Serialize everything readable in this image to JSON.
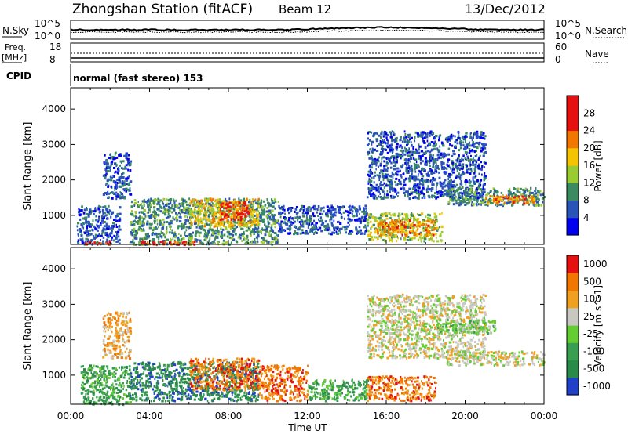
{
  "header": {
    "station": "Zhongshan Station (fitACF)",
    "beam": "Beam 12",
    "date": "13/Dec/2012"
  },
  "panels": {
    "nsky": {
      "label": "N.Sky",
      "ticks": [
        "10^5",
        "10^0"
      ],
      "right_label": "N.Search",
      "right_ticks": [
        "10^5",
        "10^0"
      ]
    },
    "freq": {
      "label_line1": "Freq.",
      "label_line2": "[MHz]",
      "ticks": [
        "18",
        "8"
      ],
      "right_label": "Nave",
      "right_ticks": [
        "60",
        "0"
      ]
    },
    "cpid": {
      "label": "CPID",
      "mode": "normal (fast stereo) 153"
    }
  },
  "chart_data": [
    {
      "type": "heatmap",
      "title": "",
      "xlabel": "Time UT",
      "ylabel": "Slant Range [km]",
      "x_ticks": [
        "00:00",
        "04:00",
        "08:00",
        "12:00",
        "16:00",
        "20:00",
        "00:00"
      ],
      "xlim": [
        0,
        24
      ],
      "y_ticks": [
        "1000",
        "2000",
        "3000",
        "4000"
      ],
      "ylim": [
        180,
        4600
      ],
      "colorbar": {
        "label": "Power [dB]",
        "levels": [
          "4",
          "8",
          "12",
          "16",
          "20",
          "24",
          "28"
        ],
        "colors": [
          "#0000ee",
          "#2a55b8",
          "#3b8a60",
          "#99cc33",
          "#f5c400",
          "#f07800",
          "#e61010",
          "#e61010"
        ]
      },
      "regions": [
        {
          "t": [
            0.3,
            2.5
          ],
          "r": [
            200,
            1300
          ],
          "level": 1
        },
        {
          "t": [
            0.5,
            2.0
          ],
          "r": [
            200,
            300
          ],
          "level": 6
        },
        {
          "t": [
            1.6,
            3.0
          ],
          "r": [
            1500,
            2800
          ],
          "level": 1
        },
        {
          "t": [
            3.0,
            10.5
          ],
          "r": [
            200,
            1500
          ],
          "level": 2
        },
        {
          "t": [
            6.0,
            9.5
          ],
          "r": [
            700,
            1500
          ],
          "level": 4
        },
        {
          "t": [
            7.5,
            9.0
          ],
          "r": [
            900,
            1400
          ],
          "level": 6
        },
        {
          "t": [
            3.5,
            6.5
          ],
          "r": [
            200,
            300
          ],
          "level": 6
        },
        {
          "t": [
            10.5,
            15.0
          ],
          "r": [
            500,
            1300
          ],
          "level": 1
        },
        {
          "t": [
            15.0,
            18.8
          ],
          "r": [
            300,
            1100
          ],
          "level": 3
        },
        {
          "t": [
            15.5,
            18.5
          ],
          "r": [
            450,
            900
          ],
          "level": 5
        },
        {
          "t": [
            15.0,
            21.0
          ],
          "r": [
            1500,
            3400
          ],
          "level": 1
        },
        {
          "t": [
            19.0,
            24.0
          ],
          "r": [
            1300,
            1800
          ],
          "level": 2
        },
        {
          "t": [
            21.0,
            23.5
          ],
          "r": [
            1350,
            1600
          ],
          "level": 5
        }
      ]
    },
    {
      "type": "heatmap",
      "title": "",
      "xlabel": "Time UT",
      "ylabel": "Slant Range [km]",
      "x_ticks": [
        "00:00",
        "04:00",
        "08:00",
        "12:00",
        "16:00",
        "20:00",
        "00:00"
      ],
      "xlim": [
        0,
        24
      ],
      "y_ticks": [
        "1000",
        "2000",
        "3000",
        "4000"
      ],
      "ylim": [
        180,
        4600
      ],
      "colorbar": {
        "label": "Velocity [m s^-1]",
        "levels": [
          "1000",
          "500",
          "100",
          "25",
          "-25",
          "-100",
          "-500",
          "-1000"
        ],
        "colors": [
          "#2040c8",
          "#2a8a4a",
          "#3a9e50",
          "#66cc33",
          "#c8c8c0",
          "#f0a020",
          "#f07800",
          "#e61010"
        ]
      },
      "regions": [
        {
          "t": [
            0.5,
            3.0
          ],
          "r": [
            200,
            1300
          ],
          "level": 2
        },
        {
          "t": [
            1.6,
            3.0
          ],
          "r": [
            1500,
            2800
          ],
          "level": 5
        },
        {
          "t": [
            3.0,
            9.5
          ],
          "r": [
            300,
            1400
          ],
          "level": 1
        },
        {
          "t": [
            6.0,
            9.5
          ],
          "r": [
            600,
            1500
          ],
          "level": 6
        },
        {
          "t": [
            9.5,
            12.0
          ],
          "r": [
            300,
            1300
          ],
          "level": 6
        },
        {
          "t": [
            12.0,
            15.0
          ],
          "r": [
            300,
            900
          ],
          "level": 2
        },
        {
          "t": [
            15.0,
            18.5
          ],
          "r": [
            300,
            1000
          ],
          "level": 6
        },
        {
          "t": [
            15.0,
            21.0
          ],
          "r": [
            1500,
            3300
          ],
          "level": 4
        },
        {
          "t": [
            19.0,
            24.0
          ],
          "r": [
            1300,
            1700
          ],
          "level": 4
        },
        {
          "t": [
            18.5,
            21.5
          ],
          "r": [
            2200,
            2600
          ],
          "level": 3
        }
      ]
    }
  ]
}
